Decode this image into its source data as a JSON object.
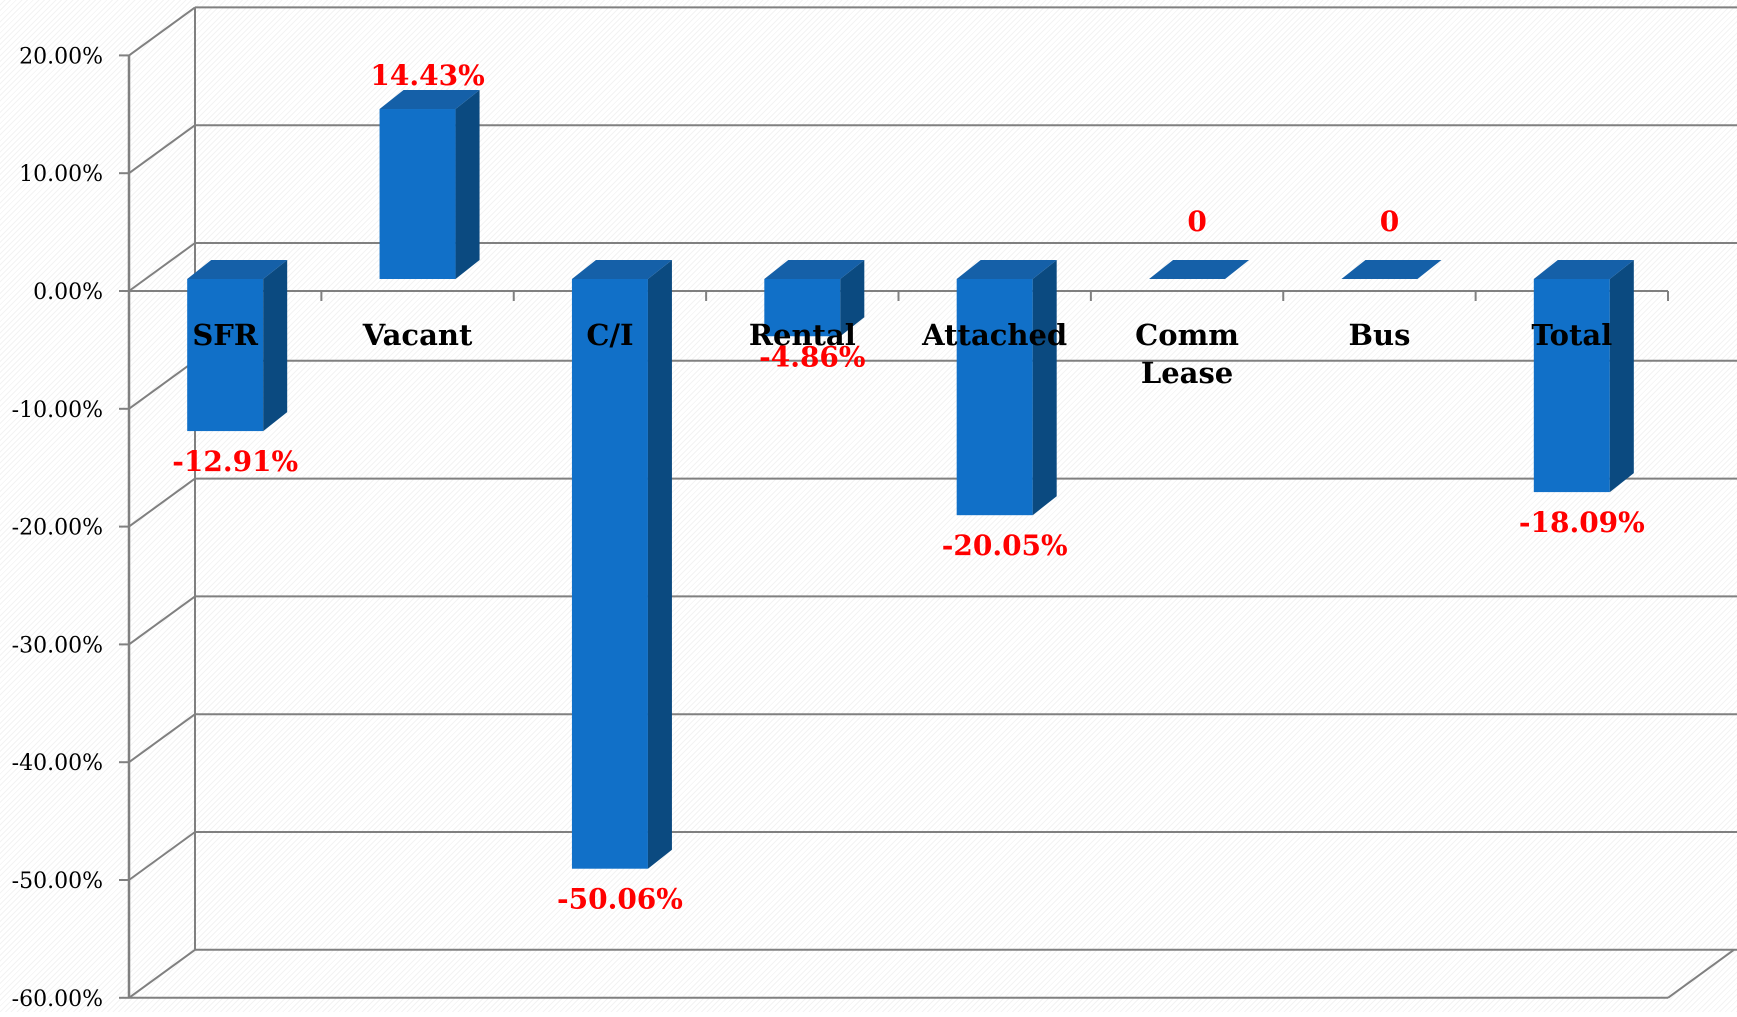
{
  "chart_data": {
    "type": "bar",
    "categories": [
      "SFR",
      "Vacant",
      "C/I",
      "Rental",
      "Attached",
      "Comm Lease",
      "Bus",
      "Total"
    ],
    "values": [
      -12.91,
      14.43,
      -50.06,
      -4.86,
      -20.05,
      0,
      0,
      -18.09
    ],
    "data_labels": [
      "-12.91%",
      "14.43%",
      "-50.06%",
      "-4.86%",
      "-20.05%",
      "0",
      "0",
      "-18.09%"
    ],
    "ylim": [
      -60,
      20
    ],
    "y_ticks": [
      20,
      10,
      0,
      -10,
      -20,
      -30,
      -40,
      -50,
      -60
    ],
    "y_tick_labels": [
      "20.00%",
      "10.00%",
      "0.00%",
      "-10.00%",
      "-20.00%",
      "-30.00%",
      "-40.00%",
      "-50.00%",
      "-60.00%"
    ],
    "gridlines": true,
    "style": "3d-clustered-column",
    "colors": {
      "bar_front": "#1170C8",
      "bar_side": "#0B4A80",
      "bar_top": "#1560A8",
      "label": "#FF0000",
      "axis": "#808080",
      "category_text": "#000000"
    }
  }
}
